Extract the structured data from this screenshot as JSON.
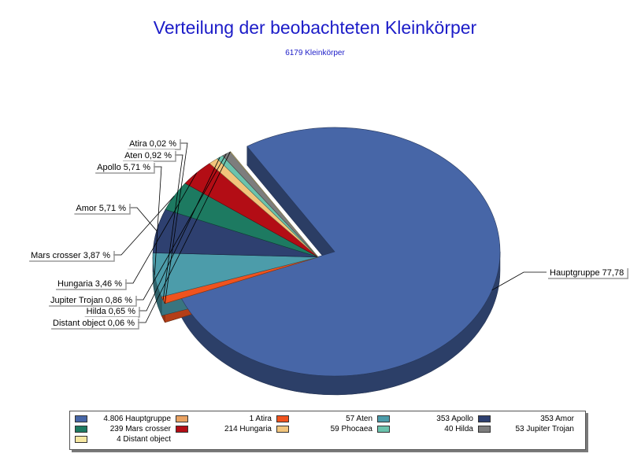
{
  "chart_data": {
    "type": "pie",
    "title": "Verteilung der beobachteten Kleinkörper",
    "subtitle": "6179 Kleinkörper",
    "slices": [
      {
        "name": "Hauptgruppe",
        "value": 4806,
        "label": "Hauptgruppe 77,78",
        "legend": "4.806 Hauptgruppe",
        "color": "#4766a7",
        "exploded": false
      },
      {
        "name": "Atira",
        "value": 1,
        "label": "Atira 0,02 %",
        "legend": "1 Atira",
        "color": "#e9a262",
        "exploded": true
      },
      {
        "name": "Aten",
        "value": 57,
        "label": "Aten 0,92 %",
        "legend": "57 Aten",
        "color": "#f0531e",
        "exploded": true
      },
      {
        "name": "Apollo",
        "value": 353,
        "label": "Apollo 5,71 %",
        "legend": "353 Apollo",
        "color": "#4c9caa",
        "exploded": true
      },
      {
        "name": "Amor",
        "value": 353,
        "label": "Amor 5,71 %",
        "legend": "353 Amor",
        "color": "#2e4070",
        "exploded": true
      },
      {
        "name": "Mars crosser",
        "value": 239,
        "label": "Mars crosser 3,87 %",
        "legend": "239 Mars crosser",
        "color": "#1d7a61",
        "exploded": true
      },
      {
        "name": "Hungaria",
        "value": 214,
        "label": "Hungaria 3,46 %",
        "legend": "214 Hungaria",
        "color": "#b30d15",
        "exploded": true
      },
      {
        "name": "Phocaea",
        "value": 59,
        "label": "",
        "legend": "59 Phocaea",
        "color": "#f2c57c",
        "exploded": true
      },
      {
        "name": "Hilda",
        "value": 40,
        "label": "Hilda 0,65 %",
        "legend": "40 Hilda",
        "color": "#6bc3ad",
        "exploded": true
      },
      {
        "name": "Jupiter Trojan",
        "value": 53,
        "label": "Jupiter Trojan 0,86 %",
        "legend": "53 Jupiter Trojan",
        "color": "#7d7d7d",
        "exploded": true
      },
      {
        "name": "Distant object",
        "value": 4,
        "label": "Distant object 0,06 %",
        "legend": "4 Distant object",
        "color": "#f7e8a2",
        "exploded": true
      }
    ],
    "legend_position": "bottom"
  }
}
